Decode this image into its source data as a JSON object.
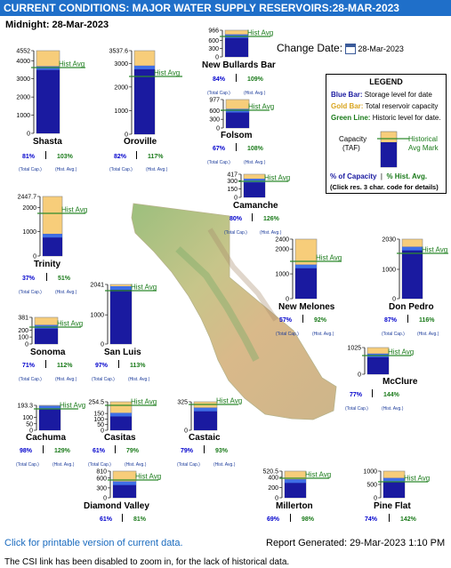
{
  "header": {
    "title": "CURRENT CONDITIONS: MAJOR WATER SUPPLY RESERVOIRS:28-MAR-2023",
    "midnight": "Midnight: 28-Mar-2023",
    "change_date_label": "Change Date:",
    "change_date_value": "28-Mar-2023"
  },
  "common": {
    "hist_avg_label": "Hist Avg",
    "total_cap_label": "(Total Cap.)",
    "hist_avg_small": "(Hist. Avg.)"
  },
  "colors": {
    "storage": "#1a1aa0",
    "capacity": "#f7cd7a",
    "hist_line": "#2e8b2e",
    "title_bar": "#1f6fc9"
  },
  "legend": {
    "title": "LEGEND",
    "blue_bar": "Blue Bar:",
    "blue_desc": "Storage level for date",
    "gold_bar": "Gold Bar:",
    "gold_desc": "Total reservoir capacity",
    "green_line": "Green Line:",
    "green_desc": "Historic level for date.",
    "capacity_label": "Capacity",
    "taf_label": "(TAF)",
    "historical_label": "Historical",
    "avg_mark_label": "Avg Mark",
    "pct_capacity": "% of Capacity",
    "pct_hist": "% Hist. Avg.",
    "click_note": "(Click res. 3 char. code for details)"
  },
  "reservoirs": [
    {
      "name": "Shasta",
      "capacity": 4552,
      "ticks": [
        "4552",
        "4000",
        "3000",
        "2000",
        "1000",
        "0"
      ],
      "pct_capacity": "81%",
      "pct_hist": "103%"
    },
    {
      "name": "Oroville",
      "capacity": 3537.6,
      "ticks": [
        "3537.6",
        "3000",
        "2000",
        "1000",
        "0"
      ],
      "pct_capacity": "82%",
      "pct_hist": "117%"
    },
    {
      "name": "New Bullards Bar",
      "capacity": 966,
      "ticks": [
        "966",
        "600",
        "300",
        "0"
      ],
      "pct_capacity": "84%",
      "pct_hist": "109%"
    },
    {
      "name": "Folsom",
      "capacity": 977,
      "ticks": [
        "977",
        "600",
        "300",
        "0"
      ],
      "pct_capacity": "67%",
      "pct_hist": "108%"
    },
    {
      "name": "Camanche",
      "capacity": 417,
      "ticks": [
        "417",
        "300",
        "150",
        "0"
      ],
      "pct_capacity": "80%",
      "pct_hist": "126%"
    },
    {
      "name": "Trinity",
      "capacity": 2447.7,
      "ticks": [
        "2447.7",
        "2000",
        "1000",
        "0"
      ],
      "pct_capacity": "37%",
      "pct_hist": "51%"
    },
    {
      "name": "New Melones",
      "capacity": 2400,
      "ticks": [
        "2400",
        "2000",
        "1000",
        "0"
      ],
      "pct_capacity": "57%",
      "pct_hist": "92%"
    },
    {
      "name": "Don Pedro",
      "capacity": 2030,
      "ticks": [
        "2030",
        "1000",
        "0"
      ],
      "pct_capacity": "87%",
      "pct_hist": "116%"
    },
    {
      "name": "Sonoma",
      "capacity": 381,
      "ticks": [
        "381",
        "200",
        "100",
        "0"
      ],
      "pct_capacity": "71%",
      "pct_hist": "112%"
    },
    {
      "name": "San Luis",
      "capacity": 2041,
      "ticks": [
        "2041",
        "1000",
        "0"
      ],
      "pct_capacity": "97%",
      "pct_hist": "113%"
    },
    {
      "name": "McClure",
      "capacity": 1025,
      "ticks": [
        "1025",
        "0"
      ],
      "pct_capacity": "77%",
      "pct_hist": "144%"
    },
    {
      "name": "Cachuma",
      "capacity": 193.3,
      "ticks": [
        "193.3",
        "100",
        "50",
        "0"
      ],
      "pct_capacity": "98%",
      "pct_hist": "129%"
    },
    {
      "name": "Casitas",
      "capacity": 254.5,
      "ticks": [
        "254.5",
        "150",
        "100",
        "50",
        "0"
      ],
      "pct_capacity": "61%",
      "pct_hist": "79%"
    },
    {
      "name": "Castaic",
      "capacity": 325,
      "ticks": [
        "325",
        "0"
      ],
      "pct_capacity": "79%",
      "pct_hist": "93%"
    },
    {
      "name": "Diamond Valley",
      "capacity": 810,
      "ticks": [
        "810",
        "600",
        "300",
        "0"
      ],
      "pct_capacity": "61%",
      "pct_hist": "81%"
    },
    {
      "name": "Millerton",
      "capacity": 520.5,
      "ticks": [
        "520.5",
        "400",
        "200",
        "0"
      ],
      "pct_capacity": "69%",
      "pct_hist": "98%"
    },
    {
      "name": "Pine Flat",
      "capacity": 1000,
      "ticks": [
        "1000",
        "500",
        "0"
      ],
      "pct_capacity": "74%",
      "pct_hist": "142%"
    }
  ],
  "footer": {
    "printable_link": "Click for printable version of current data.",
    "report_generated": "Report Generated: 29-Mar-2023 1:10 PM",
    "note": "The CSI link has been disabled to zoom in, for the lack of historical data."
  }
}
